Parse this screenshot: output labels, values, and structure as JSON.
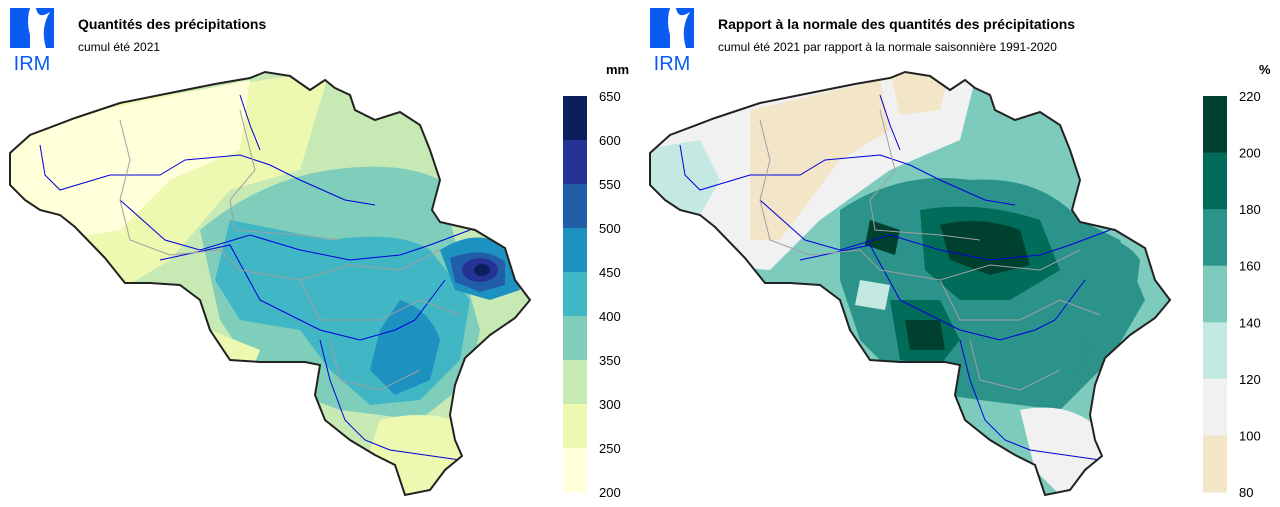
{
  "logo_text": "IRM",
  "panels": [
    {
      "title": "Quantités des précipitations",
      "subtitle": "cumul été 2021",
      "unit": "mm",
      "legend": {
        "labels": [
          "650",
          "600",
          "550",
          "500",
          "450",
          "400",
          "350",
          "300",
          "250",
          "200"
        ],
        "colors": [
          "#0c1f5c",
          "#253494",
          "#225ea8",
          "#1d91c0",
          "#41b6c4",
          "#7fcdbb",
          "#c7e9b4",
          "#edf8b1",
          "#ffffd9"
        ]
      },
      "zones": {
        "base": "#c7e9b4",
        "west": "#ffffd9",
        "coast": "#edf8b1",
        "centre": "#7fcdbb",
        "mid": "#41b6c4",
        "east": "#1d91c0",
        "east2": "#225ea8",
        "core": "#253494",
        "core2": "#0c1f5c",
        "south": "#edf8b1"
      }
    },
    {
      "title": "Rapport à la normale des quantités des précipitations",
      "subtitle": "cumul été 2021 par rapport à la normale saisonnière 1991-2020",
      "unit": "%",
      "legend": {
        "labels": [
          "220",
          "200",
          "180",
          "160",
          "140",
          "120",
          "100",
          "80"
        ],
        "colors": [
          "#00402e",
          "#016c59",
          "#2b938a",
          "#7ccbbd",
          "#c4e9e3",
          "#f0f1f0",
          "#f3e5c8"
        ]
      },
      "zones": {
        "base": "#7ccbbd",
        "west": "#f0f1f0",
        "coast": "#c4e9e3",
        "centre": "#2b938a",
        "mid": "#016c59",
        "east": "#2b938a",
        "east2": "#016c59",
        "core": "#016c59",
        "core2": "#00402e",
        "south": "#f0f1f0",
        "tan": "#f3e5c8"
      }
    }
  ]
}
